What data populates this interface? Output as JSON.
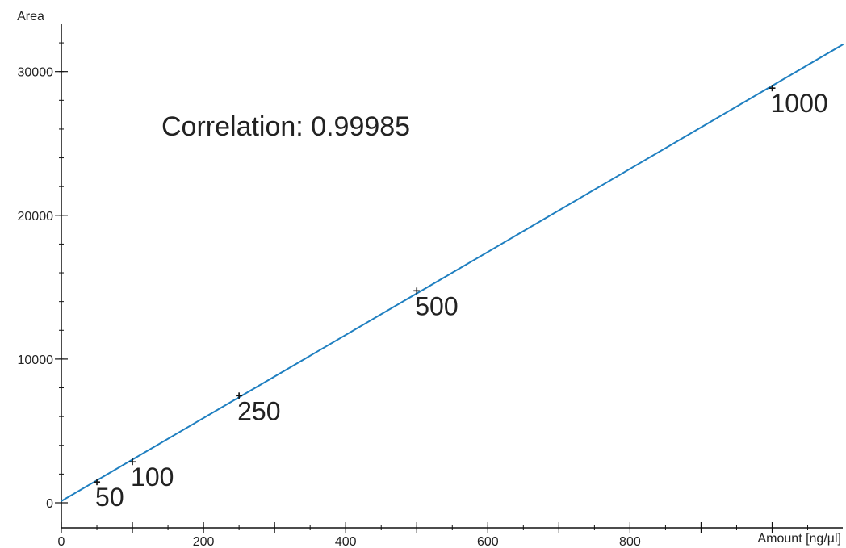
{
  "chart_data": {
    "type": "scatter",
    "xlabel": "Amount [ng/µl]",
    "ylabel": "Area",
    "xlim": [
      0,
      1100
    ],
    "ylim": [
      -1500,
      33000
    ],
    "x_ticks": [
      0,
      200,
      400,
      600,
      800
    ],
    "y_ticks": [
      0,
      10000,
      20000,
      30000
    ],
    "x_tick_labels": [
      "0",
      "200",
      "400",
      "600",
      "800"
    ],
    "y_tick_labels": [
      "0",
      "10000",
      "20000",
      "30000"
    ],
    "points": [
      {
        "x": 50,
        "y": 1450,
        "label": "50"
      },
      {
        "x": 100,
        "y": 2850,
        "label": "100"
      },
      {
        "x": 250,
        "y": 7450,
        "label": "250"
      },
      {
        "x": 500,
        "y": 14750,
        "label": "500"
      },
      {
        "x": 1000,
        "y": 28850,
        "label": "1000"
      }
    ],
    "fit_line": {
      "color": "#1f7fc0",
      "x": [
        0,
        1100
      ],
      "y": [
        120,
        31900
      ]
    },
    "annotation": "Correlation: 0.99985",
    "grid": false
  }
}
